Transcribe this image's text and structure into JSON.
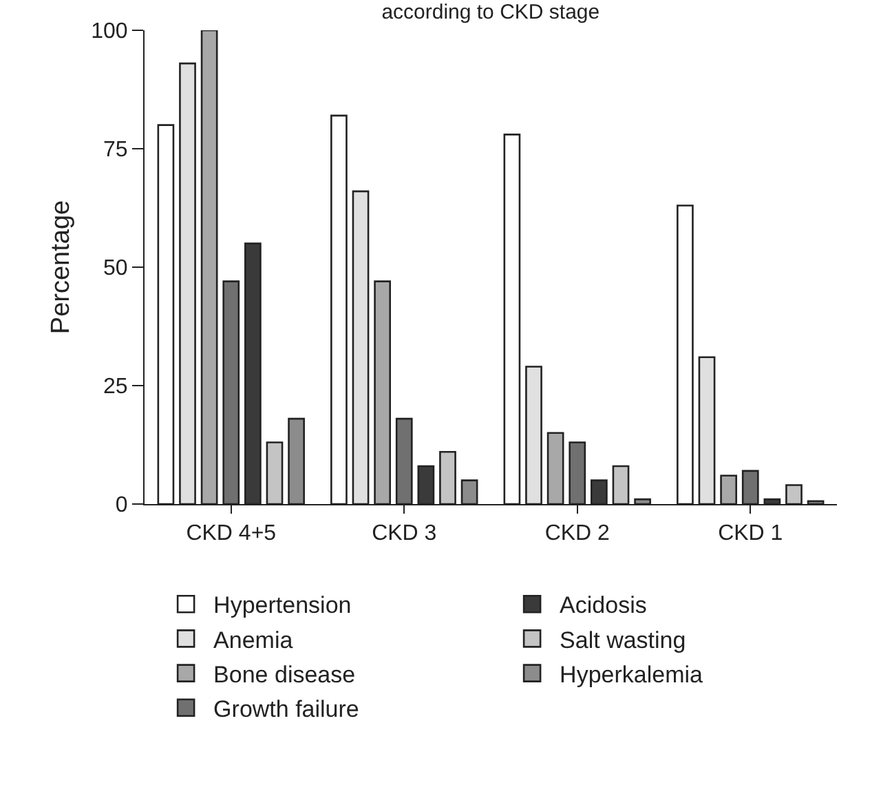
{
  "chart_data": {
    "type": "bar",
    "title": "according to CKD stage",
    "ylabel": "Percentage",
    "categories": [
      "CKD 4+5",
      "CKD 3",
      "CKD 2",
      "CKD 1"
    ],
    "series": [
      {
        "name": "Hypertension",
        "color": "#ffffff",
        "values": [
          80,
          82,
          78,
          63
        ]
      },
      {
        "name": "Anemia",
        "color": "#e0e0e0",
        "values": [
          93,
          66,
          29,
          31
        ]
      },
      {
        "name": "Bone disease",
        "color": "#a8a8a8",
        "values": [
          100,
          47,
          15,
          6
        ]
      },
      {
        "name": "Growth failure",
        "color": "#707070",
        "values": [
          47,
          18,
          13,
          7
        ]
      },
      {
        "name": "Acidosis",
        "color": "#3a3a3a",
        "values": [
          55,
          8,
          5,
          1
        ]
      },
      {
        "name": "Salt wasting",
        "color": "#c4c4c4",
        "values": [
          13,
          11,
          8,
          4
        ]
      },
      {
        "name": "Hyperkalemia",
        "color": "#8c8c8c",
        "values": [
          18,
          5,
          1,
          0.6
        ]
      }
    ],
    "ylim": [
      0,
      100
    ],
    "yticks": [
      0,
      25,
      50,
      75,
      100
    ],
    "legend": "bottom"
  }
}
